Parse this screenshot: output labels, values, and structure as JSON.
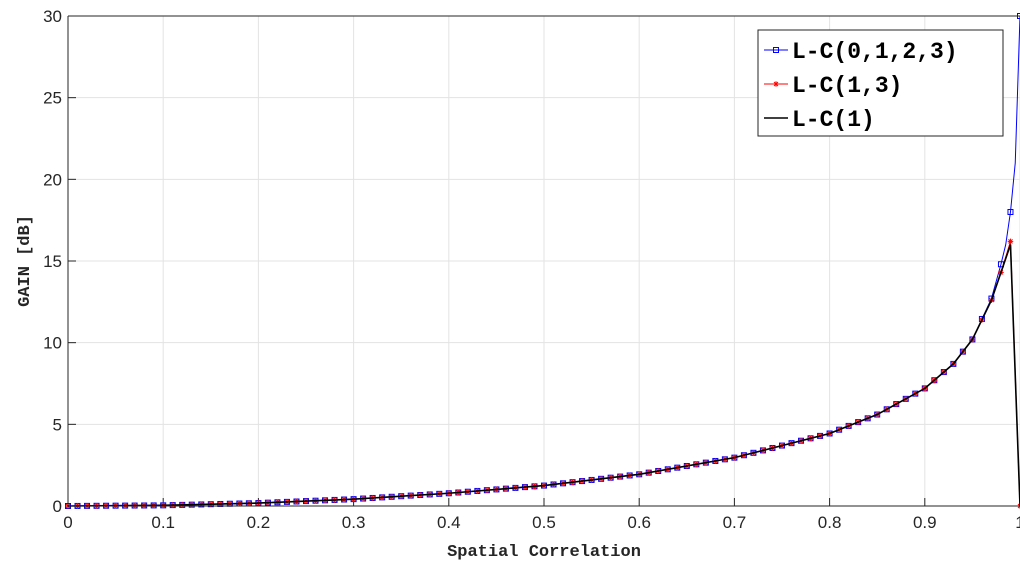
{
  "chart_data": {
    "type": "line",
    "title": "",
    "xlabel": "Spatial Correlation",
    "ylabel": "GAIN [dB]",
    "xlim": [
      0,
      1
    ],
    "ylim": [
      0,
      30
    ],
    "grid": true,
    "legend_position": "top-right",
    "x_ticks": [
      "0",
      "0.1",
      "0.2",
      "0.3",
      "0.4",
      "0.5",
      "0.6",
      "0.7",
      "0.8",
      "0.9",
      "1"
    ],
    "y_ticks": [
      "0",
      "5",
      "10",
      "15",
      "20",
      "25",
      "30"
    ],
    "series": [
      {
        "name": "L-C(0,1,2,3)",
        "color": "#0000ff",
        "marker": "square",
        "x": [
          0,
          0.1,
          0.2,
          0.3,
          0.4,
          0.5,
          0.6,
          0.7,
          0.8,
          0.85,
          0.9,
          0.93,
          0.95,
          0.97,
          0.98,
          0.985,
          0.99,
          0.995,
          1.0
        ],
        "y": [
          0,
          0.04,
          0.18,
          0.42,
          0.78,
          1.25,
          1.94,
          2.96,
          4.44,
          5.6,
          7.2,
          8.7,
          10.2,
          12.7,
          14.8,
          16.0,
          18.0,
          21.0,
          30.0
        ]
      },
      {
        "name": "L-C(1,3)",
        "color": "#ff0000",
        "marker": "asterisk",
        "x": [
          0,
          0.1,
          0.2,
          0.3,
          0.4,
          0.5,
          0.6,
          0.7,
          0.8,
          0.85,
          0.9,
          0.93,
          0.95,
          0.97,
          0.98,
          0.99,
          1.0
        ],
        "y": [
          0,
          0.04,
          0.18,
          0.42,
          0.78,
          1.25,
          1.94,
          2.96,
          4.44,
          5.6,
          7.2,
          8.7,
          10.2,
          12.6,
          14.3,
          16.2,
          0
        ]
      },
      {
        "name": "L-C(1)",
        "color": "#000000",
        "marker": "none",
        "x": [
          0,
          0.1,
          0.2,
          0.3,
          0.4,
          0.5,
          0.6,
          0.7,
          0.8,
          0.85,
          0.9,
          0.93,
          0.95,
          0.97,
          0.98,
          0.99,
          1.0
        ],
        "y": [
          0,
          0.04,
          0.18,
          0.42,
          0.78,
          1.25,
          1.94,
          2.96,
          4.44,
          5.6,
          7.2,
          8.7,
          10.2,
          12.6,
          14.3,
          16.0,
          0
        ]
      }
    ]
  }
}
